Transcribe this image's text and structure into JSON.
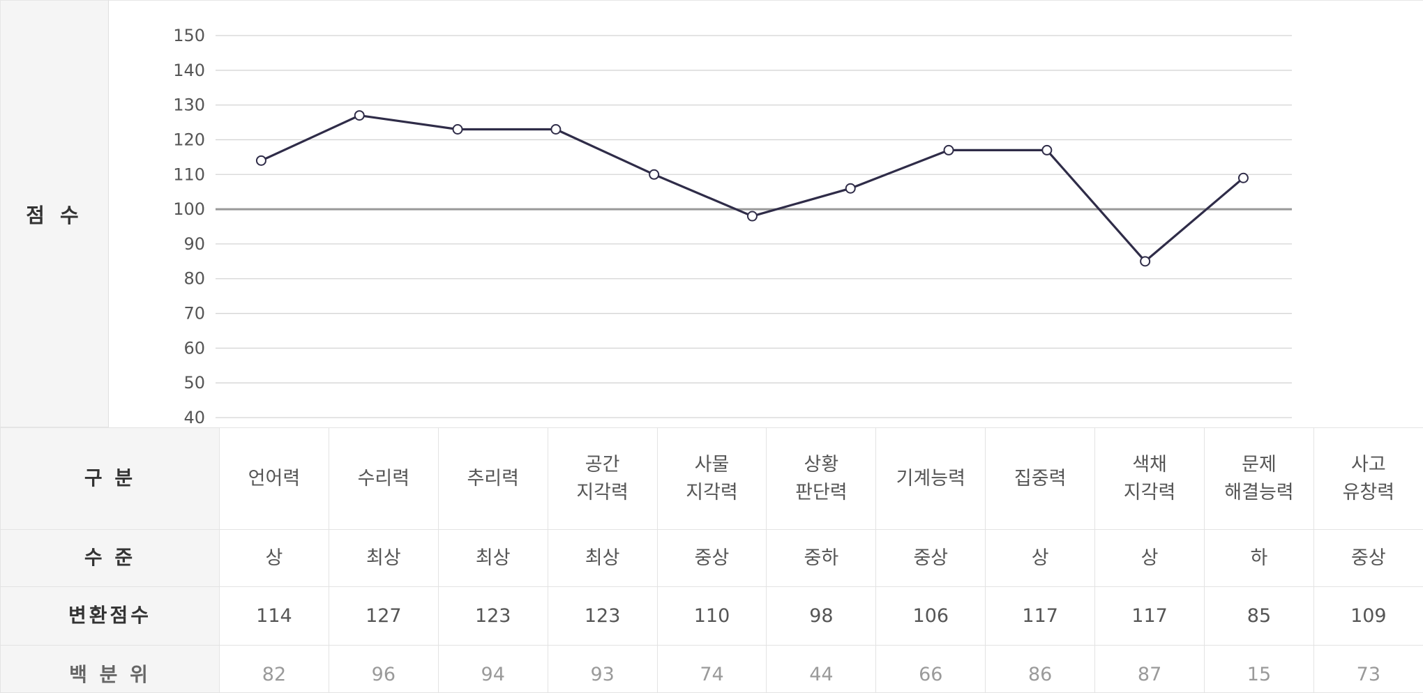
{
  "chart_labels": {
    "score_axis_label": "점 수"
  },
  "table": {
    "row_headers": {
      "category": "구 분",
      "level": "수 준",
      "converted": "변환점수",
      "percentile": "백 분 위"
    },
    "categories": [
      "언어력",
      "수리력",
      "추리력",
      "공간\n지각력",
      "사물\n지각력",
      "상황\n판단력",
      "기계능력",
      "집중력",
      "색채\n지각력",
      "문제\n해결능력",
      "사고\n유창력"
    ],
    "levels": [
      "상",
      "최상",
      "최상",
      "최상",
      "중상",
      "중하",
      "중상",
      "상",
      "상",
      "하",
      "중상"
    ],
    "converted_scores": [
      "114",
      "127",
      "123",
      "123",
      "110",
      "98",
      "106",
      "117",
      "117",
      "85",
      "109"
    ],
    "percentiles": [
      "82",
      "96",
      "94",
      "93",
      "74",
      "44",
      "66",
      "86",
      "87",
      "15",
      "73"
    ]
  },
  "chart_data": {
    "type": "line",
    "ylabel": "점 수",
    "ylim": [
      40,
      150
    ],
    "yticks": [
      40,
      50,
      60,
      70,
      80,
      90,
      100,
      110,
      120,
      130,
      140,
      150
    ],
    "reference_line": 100,
    "grid": true,
    "values": [
      114,
      127,
      123,
      123,
      110,
      98,
      106,
      117,
      117,
      85,
      109
    ],
    "colors": {
      "line": "#2f2c48",
      "grid": "#d4d4d4",
      "reference": "#999999",
      "marker_fill": "#ffffff"
    }
  }
}
